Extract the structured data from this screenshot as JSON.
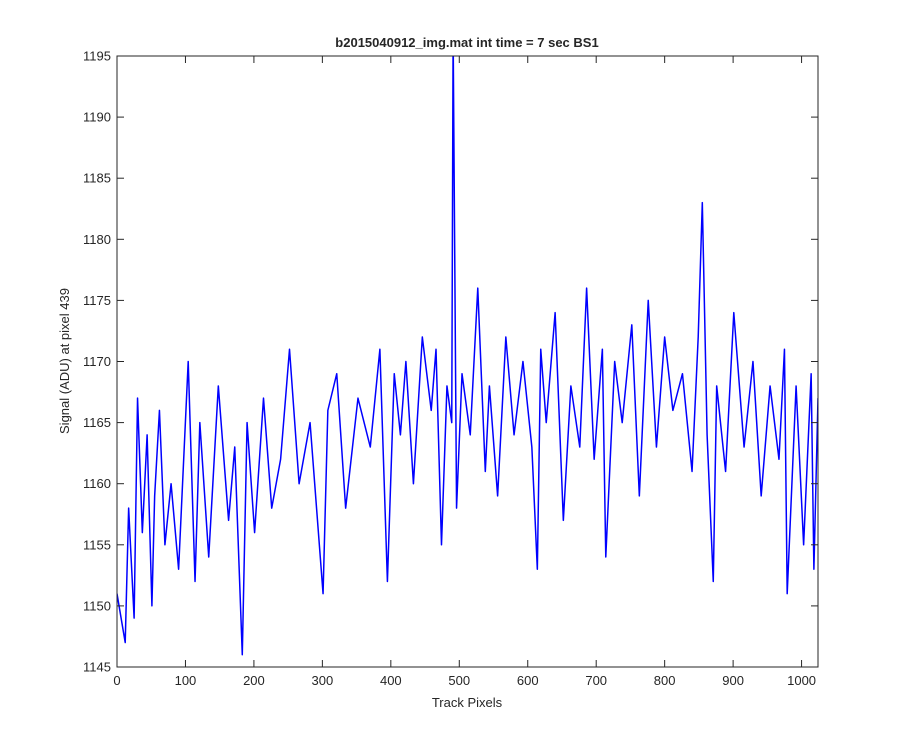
{
  "chart_data": {
    "type": "line",
    "title": "b2015040912_img.mat int time = 7 sec   BS1",
    "xlabel": "Track Pixels",
    "ylabel": "Signal (ADU) at pixel 439",
    "xlim": [
      0,
      1024
    ],
    "ylim": [
      1145,
      1195
    ],
    "xticks": [
      0,
      100,
      200,
      300,
      400,
      500,
      600,
      700,
      800,
      900,
      1000
    ],
    "yticks": [
      1145,
      1150,
      1155,
      1160,
      1165,
      1170,
      1175,
      1180,
      1185,
      1190,
      1195
    ],
    "grid": false,
    "legend": "none",
    "line_color": "#0000ff",
    "series": [
      {
        "x": [
          0,
          12,
          17,
          25,
          30,
          37,
          44,
          51,
          55,
          62,
          70,
          79,
          90,
          104,
          114,
          121,
          134,
          148,
          163,
          172,
          183,
          190,
          201,
          214,
          226,
          239,
          252,
          266,
          282,
          301,
          308,
          321,
          334,
          352,
          370,
          384,
          395,
          405,
          414,
          422,
          433,
          446,
          459,
          466,
          474,
          482,
          489,
          491,
          496,
          504,
          516,
          527,
          538,
          544,
          556,
          568,
          580,
          593,
          606,
          614,
          619,
          627,
          640,
          652,
          663,
          676,
          686,
          697,
          709,
          714,
          727,
          738,
          752,
          763,
          776,
          788,
          800,
          812,
          826,
          840,
          849,
          855,
          862,
          871,
          876,
          889,
          901,
          916,
          929,
          941,
          954,
          967,
          975,
          979,
          992,
          1003,
          1014,
          1018,
          1024
        ],
        "y": [
          1151,
          1147,
          1158,
          1149,
          1167,
          1156,
          1164,
          1150,
          1159,
          1166,
          1155,
          1160,
          1153,
          1170,
          1152,
          1165,
          1154,
          1168,
          1157,
          1163,
          1146,
          1165,
          1156,
          1167,
          1158,
          1162,
          1171,
          1160,
          1165,
          1151,
          1166,
          1169,
          1158,
          1167,
          1163,
          1171,
          1152,
          1169,
          1164,
          1170,
          1160,
          1172,
          1166,
          1171,
          1155,
          1168,
          1165,
          1197,
          1158,
          1169,
          1164,
          1176,
          1161,
          1168,
          1159,
          1172,
          1164,
          1170,
          1163,
          1153,
          1171,
          1165,
          1174,
          1157,
          1168,
          1163,
          1176,
          1162,
          1171,
          1154,
          1170,
          1165,
          1173,
          1159,
          1175,
          1163,
          1172,
          1166,
          1169,
          1161,
          1172,
          1183,
          1164,
          1152,
          1168,
          1161,
          1174,
          1163,
          1170,
          1159,
          1168,
          1162,
          1171,
          1151,
          1168,
          1155,
          1169,
          1153,
          1167
        ]
      }
    ]
  }
}
